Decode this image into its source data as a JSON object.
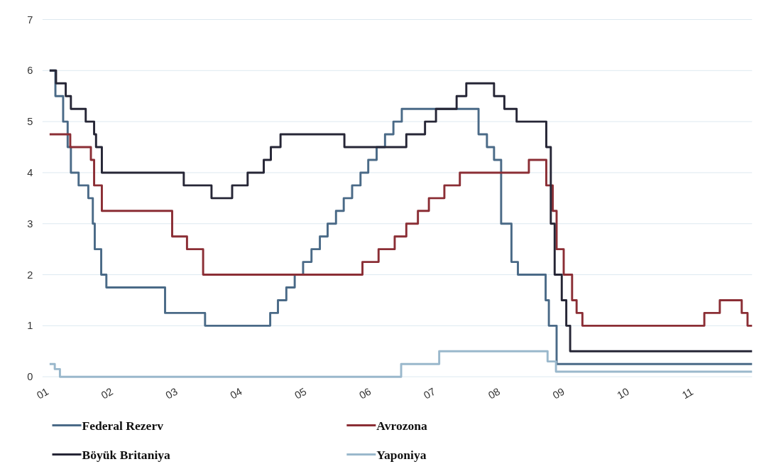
{
  "chart_data": {
    "type": "step",
    "xlim": [
      2001,
      2012
    ],
    "xticks": [
      {
        "value": 2001,
        "label": "01"
      },
      {
        "value": 2002,
        "label": "02"
      },
      {
        "value": 2003,
        "label": "03"
      },
      {
        "value": 2004,
        "label": "04"
      },
      {
        "value": 2005,
        "label": "05"
      },
      {
        "value": 2006,
        "label": "06"
      },
      {
        "value": 2007,
        "label": "07"
      },
      {
        "value": 2008,
        "label": "08"
      },
      {
        "value": 2009,
        "label": "09"
      },
      {
        "value": 2010,
        "label": "10"
      },
      {
        "value": 2011,
        "label": "11"
      }
    ],
    "ylim": [
      0,
      7
    ],
    "yticks": [
      0,
      1,
      2,
      3,
      4,
      5,
      6,
      7
    ],
    "grid": "y",
    "legend": "bottom",
    "series": [
      {
        "name": "Federal Rezerv",
        "color": "#4a6a87",
        "x": [
          2001.11,
          2001.2,
          2001.32,
          2001.39,
          2001.44,
          2001.56,
          2001.71,
          2001.78,
          2001.81,
          2001.91,
          2001.99,
          2002.9,
          2003.52,
          2004.53,
          2004.65,
          2004.78,
          2004.91,
          2005.04,
          2005.17,
          2005.3,
          2005.42,
          2005.55,
          2005.67,
          2005.8,
          2005.93,
          2006.05,
          2006.18,
          2006.31,
          2006.44,
          2006.57,
          2007.76,
          2007.89,
          2008.0,
          2008.11,
          2008.27,
          2008.37,
          2008.8,
          2008.85,
          2008.97,
          2012.0
        ],
        "values": [
          6.0,
          5.5,
          5.0,
          4.5,
          4.0,
          3.75,
          3.5,
          3.0,
          2.5,
          2.0,
          1.75,
          1.25,
          1.0,
          1.25,
          1.5,
          1.75,
          2.0,
          2.25,
          2.5,
          2.75,
          3.0,
          3.25,
          3.5,
          3.75,
          4.0,
          4.25,
          4.5,
          4.75,
          5.0,
          5.25,
          4.75,
          4.5,
          4.25,
          3.0,
          2.25,
          2.0,
          1.5,
          1.0,
          0.25,
          0.25
        ]
      },
      {
        "name": "Avrozona",
        "color": "#8b2e35",
        "x": [
          2001.11,
          2001.43,
          2001.75,
          2001.8,
          2001.92,
          2003.01,
          2003.24,
          2003.49,
          2005.96,
          2006.21,
          2006.46,
          2006.64,
          2006.82,
          2006.99,
          2007.23,
          2007.47,
          2008.54,
          2008.81,
          2008.91,
          2008.97,
          2009.08,
          2009.21,
          2009.28,
          2009.37,
          2011.26,
          2011.5,
          2011.84,
          2011.93,
          2012.0
        ],
        "values": [
          4.75,
          4.5,
          4.25,
          3.75,
          3.25,
          2.75,
          2.5,
          2.0,
          2.25,
          2.5,
          2.75,
          3.0,
          3.25,
          3.5,
          3.75,
          4.0,
          4.25,
          3.75,
          3.25,
          2.5,
          2.0,
          1.5,
          1.25,
          1.0,
          1.25,
          1.5,
          1.25,
          1.0,
          1.0
        ]
      },
      {
        "name": "Böyük Britaniya",
        "color": "#262636",
        "x": [
          2001.11,
          2001.21,
          2001.36,
          2001.44,
          2001.67,
          2001.8,
          2001.83,
          2001.92,
          2003.19,
          2003.62,
          2003.94,
          2004.18,
          2004.43,
          2004.54,
          2004.69,
          2005.68,
          2006.64,
          2006.93,
          2007.1,
          2007.42,
          2007.57,
          2008.0,
          2008.16,
          2008.35,
          2008.81,
          2008.88,
          2008.94,
          2009.05,
          2009.12,
          2009.18,
          2012.0
        ],
        "values": [
          6.0,
          5.75,
          5.5,
          5.25,
          5.0,
          4.75,
          4.5,
          4.0,
          3.75,
          3.5,
          3.75,
          4.0,
          4.25,
          4.5,
          4.75,
          4.5,
          4.75,
          5.0,
          5.25,
          5.5,
          5.75,
          5.5,
          5.25,
          5.0,
          4.5,
          3.0,
          2.0,
          1.5,
          1.0,
          0.5,
          0.5
        ]
      },
      {
        "name": "Yaponiya",
        "color": "#9ab8cc",
        "x": [
          2001.11,
          2001.19,
          2001.27,
          2006.56,
          2007.15,
          2008.83,
          2008.96,
          2012.0
        ],
        "values": [
          0.25,
          0.15,
          0.0,
          0.25,
          0.5,
          0.3,
          0.1,
          0.1
        ]
      }
    ]
  }
}
